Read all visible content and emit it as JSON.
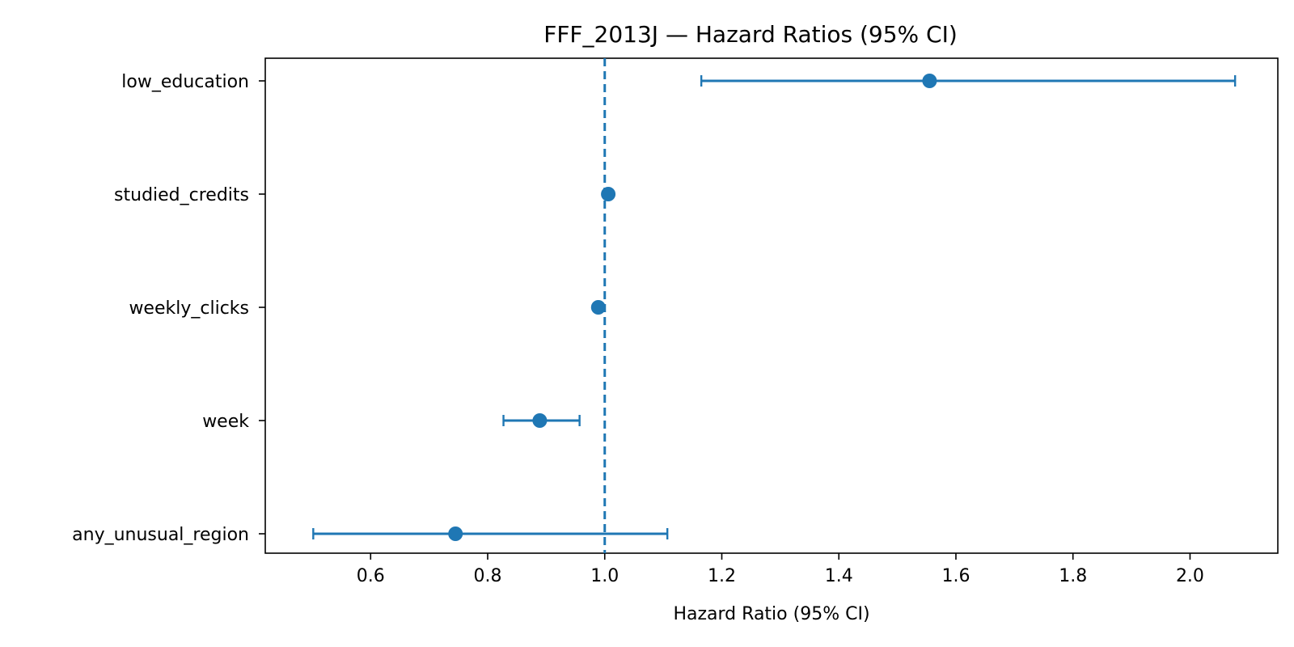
{
  "chart_data": {
    "type": "forest",
    "title": "FFF_2013J — Hazard Ratios (95% CI)",
    "xlabel": "Hazard Ratio (95% CI)",
    "ylabel": "",
    "xlim": [
      0.42,
      2.15
    ],
    "xticks": [
      0.6,
      0.8,
      1.0,
      1.2,
      1.4,
      1.6,
      1.8,
      2.0
    ],
    "xtick_labels": [
      "0.6",
      "0.8",
      "1.0",
      "1.2",
      "1.4",
      "1.6",
      "1.8",
      "2.0"
    ],
    "reference_line": 1.0,
    "grid": false,
    "color": "#1f77b4",
    "rows": [
      {
        "label": "low_education",
        "hr": 1.555,
        "lower": 1.165,
        "upper": 2.077
      },
      {
        "label": "studied_credits",
        "hr": 1.006,
        "lower": 1.002,
        "upper": 1.01
      },
      {
        "label": "weekly_clicks",
        "hr": 0.989,
        "lower": 0.986,
        "upper": 0.992
      },
      {
        "label": "week",
        "hr": 0.889,
        "lower": 0.827,
        "upper": 0.957
      },
      {
        "label": "any_unusual_region",
        "hr": 0.745,
        "lower": 0.502,
        "upper": 1.107
      }
    ]
  }
}
